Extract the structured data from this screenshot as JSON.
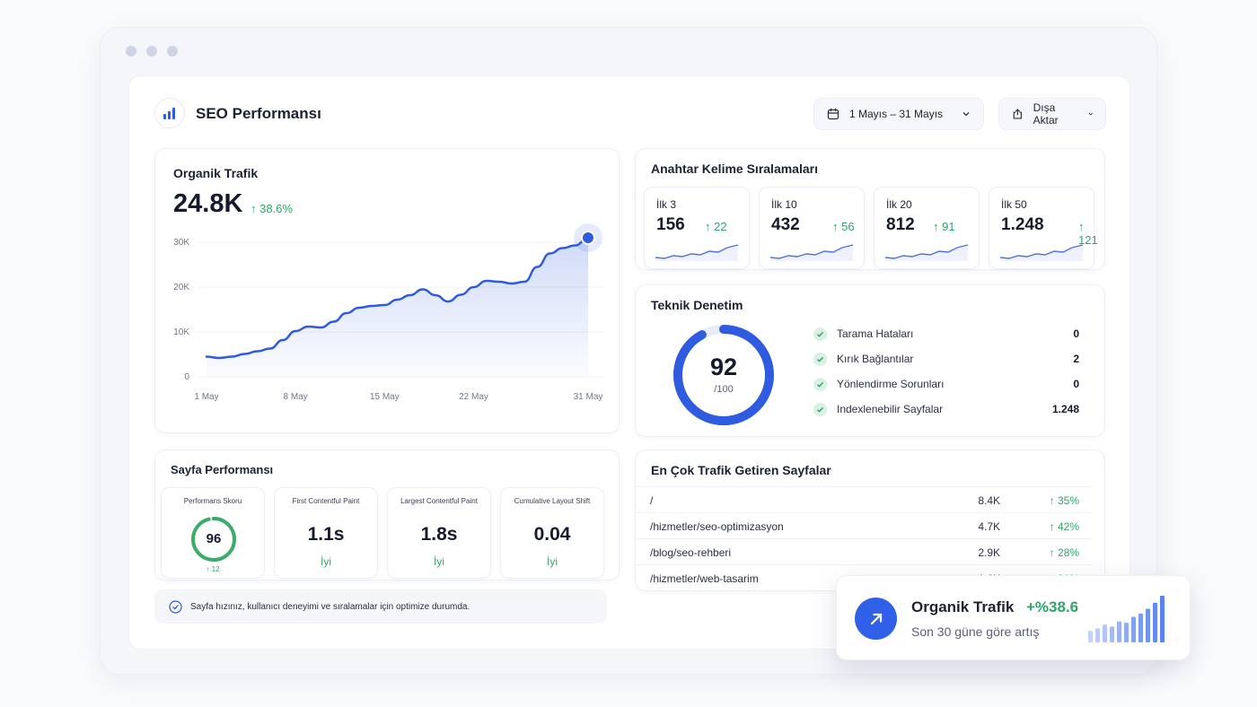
{
  "header": {
    "title": "SEO Performansı",
    "date_range": "1 Mayıs – 31 Mayıs",
    "export_label": "Dışa Aktar"
  },
  "traffic": {
    "title": "Organik Trafik",
    "value": "24.8K",
    "delta": "↑ 38.6%",
    "chart_data": {
      "type": "area",
      "title": "",
      "xlabel": "",
      "ylabel": "",
      "x_tick_labels": [
        "1 May",
        "8 May",
        "15 May",
        "22 May",
        "31 May"
      ],
      "y_tick_labels": [
        "0",
        "10K",
        "20K",
        "30K"
      ],
      "ylim": [
        0,
        30000
      ],
      "x": [
        1,
        2,
        3,
        4,
        5,
        6,
        7,
        8,
        9,
        10,
        11,
        12,
        13,
        14,
        15,
        16,
        17,
        18,
        19,
        20,
        21,
        22,
        23,
        24,
        25,
        26,
        27,
        28,
        29,
        30,
        31
      ],
      "y": [
        4500,
        4200,
        4500,
        5100,
        5700,
        6300,
        8200,
        10200,
        11200,
        11000,
        12300,
        14200,
        15400,
        15800,
        16000,
        17200,
        18200,
        19500,
        18200,
        16800,
        18300,
        20000,
        21400,
        21200,
        20800,
        21200,
        24500,
        27500,
        28700,
        29300,
        31000
      ],
      "grid": true,
      "color": "#2f5be0"
    }
  },
  "keywords": {
    "title": "Anahtar Kelime Sıralamaları",
    "cards": [
      {
        "label": "İlk 3",
        "value": "156",
        "delta": "↑ 22"
      },
      {
        "label": "İlk 10",
        "value": "432",
        "delta": "↑ 56"
      },
      {
        "label": "İlk 20",
        "value": "812",
        "delta": "↑ 91"
      },
      {
        "label": "İlk 50",
        "value": "1.248",
        "delta": "↑ 121"
      }
    ]
  },
  "audit": {
    "title": "Teknik Denetim",
    "score": "92",
    "score_max": "/100",
    "score_fraction": 0.92,
    "items": [
      {
        "label": "Tarama Hataları",
        "value": "0"
      },
      {
        "label": "Kırık Bağlantılar",
        "value": "2"
      },
      {
        "label": "Yönlendirme Sorunları",
        "value": "0"
      },
      {
        "label": "Indexlenebilir Sayfalar",
        "value": "1.248"
      }
    ]
  },
  "page_perf": {
    "title": "Sayfa Performansı",
    "score_label": "Performans Skoru",
    "score": "96",
    "score_fraction": 0.96,
    "score_delta": "↑ 12",
    "metrics": [
      {
        "label": "First Contentful Paint",
        "value": "1.1s",
        "status": "İyi"
      },
      {
        "label": "Largest Contentful Paint",
        "value": "1.8s",
        "status": "İyi"
      },
      {
        "label": "Cumulative Layout Shift",
        "value": "0.04",
        "status": "İyi"
      }
    ],
    "note": "Sayfa hızınız, kullanıcı deneyimi ve sıralamalar için optimize durumda."
  },
  "top_pages": {
    "title": "En Çok Trafik Getiren Sayfalar",
    "rows": [
      {
        "path": "/",
        "visits": "8.4K",
        "change": "↑ 35%"
      },
      {
        "path": "/hizmetler/seo-optimizasyon",
        "visits": "4.7K",
        "change": "↑ 42%"
      },
      {
        "path": "/blog/seo-rehberi",
        "visits": "2.9K",
        "change": "↑ 28%"
      },
      {
        "path": "/hizmetler/web-tasarim",
        "visits": "1.6K",
        "change": "↑ 31%"
      }
    ]
  },
  "float": {
    "title": "Organik Trafik",
    "delta": "+%38.6",
    "subtitle": "Son 30 güne göre artış",
    "bars": [
      0.25,
      0.3,
      0.38,
      0.34,
      0.45,
      0.42,
      0.55,
      0.62,
      0.72,
      0.85,
      1.0
    ]
  },
  "colors": {
    "accent": "#2f5be0",
    "green": "#2fa56a",
    "green_ring": "#3dab6a"
  }
}
